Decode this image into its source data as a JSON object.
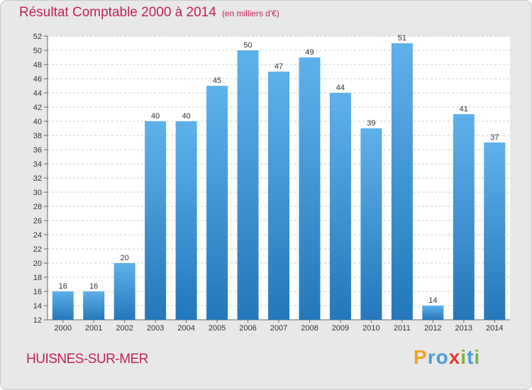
{
  "header": {
    "title": "Résultat Comptable 2000 à 2014",
    "subtitle": "(en milliers d'€)"
  },
  "footer": {
    "town": "HUISNES-SUR-MER",
    "logo_letters": [
      "P",
      "r",
      "o",
      "x",
      "i",
      "t",
      "i"
    ]
  },
  "colors": {
    "title": "#c0235a",
    "bar_light": "#5eb1ea",
    "bar_dark": "#2478bb",
    "background": "#e8e8e8",
    "logo": [
      "#f0a21c",
      "#4f9bd6",
      "#4f9bd6",
      "#e8392e",
      "#7ab842",
      "#4f9bd6",
      "#7ab842"
    ]
  },
  "chart_data": {
    "type": "bar",
    "title": "Résultat Comptable 2000 à 2014",
    "subtitle": "(en milliers d'€)",
    "xlabel": "",
    "ylabel": "",
    "categories": [
      "2000",
      "2001",
      "2002",
      "2003",
      "2004",
      "2005",
      "2006",
      "2007",
      "2008",
      "2009",
      "2010",
      "2011",
      "2012",
      "2013",
      "2014"
    ],
    "values": [
      16,
      16,
      20,
      40,
      40,
      45,
      50,
      47,
      49,
      44,
      39,
      51,
      14,
      41,
      37
    ],
    "ylim": [
      12,
      52
    ],
    "yticks": [
      12,
      14,
      16,
      18,
      20,
      22,
      24,
      26,
      28,
      30,
      32,
      34,
      36,
      38,
      40,
      42,
      44,
      46,
      48,
      50,
      52
    ],
    "grid": true
  }
}
